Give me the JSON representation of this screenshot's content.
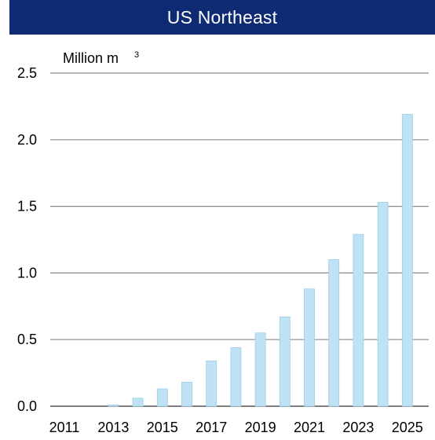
{
  "chart_data": {
    "type": "bar",
    "title": "US Northeast",
    "ylabel": "Million m",
    "ylabel_superscript": "3",
    "categories": [
      "2011",
      "2012",
      "2013",
      "2014",
      "2015",
      "2016",
      "2017",
      "2018",
      "2019",
      "2020",
      "2021",
      "2022",
      "2023",
      "2024",
      "2025"
    ],
    "x_tick_labels": [
      "2011",
      "2013",
      "2015",
      "2017",
      "2019",
      "2021",
      "2023",
      "2025"
    ],
    "values": [
      0.0,
      0.0,
      0.01,
      0.06,
      0.13,
      0.18,
      0.34,
      0.44,
      0.55,
      0.67,
      0.88,
      1.1,
      1.29,
      1.53,
      2.19
    ],
    "ylim": [
      0,
      2.5
    ],
    "y_ticks": [
      "0.0",
      "0.5",
      "1.0",
      "1.5",
      "2.0",
      "2.5"
    ],
    "grid": true,
    "legend": "none",
    "colors": {
      "bar_fill": "#bfe3f4",
      "bar_stroke": "#9fcde6",
      "title_bg": "#0d2a72",
      "grid": "#8c8c8c"
    }
  }
}
